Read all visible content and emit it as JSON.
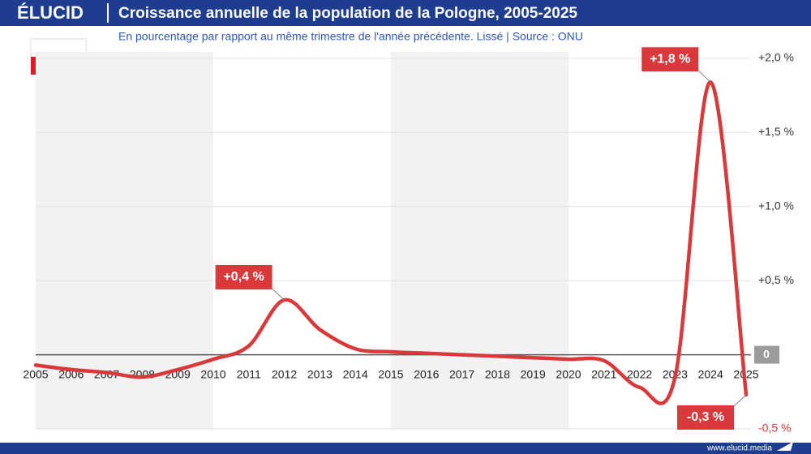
{
  "brand": "ÉLUCID",
  "website": "www.elucid.media",
  "chart_data": {
    "type": "line",
    "title": "Croissance annuelle de la population de la Pologne, 2005-2025",
    "subtitle": "En pourcentage par rapport au même trimestre de l'année précédente. Lissé  |  Source : ONU",
    "x": [
      2005,
      2006,
      2007,
      2008,
      2009,
      2010,
      2011,
      2012,
      2013,
      2014,
      2015,
      2016,
      2017,
      2018,
      2019,
      2020,
      2021,
      2022,
      2023,
      2024,
      2025
    ],
    "series": [
      {
        "name": "Pologne",
        "color": "#d9393b",
        "values": [
          -0.07,
          -0.1,
          -0.12,
          -0.15,
          -0.1,
          -0.03,
          0.06,
          0.37,
          0.17,
          0.04,
          0.02,
          0.01,
          0.0,
          -0.01,
          -0.02,
          -0.03,
          -0.04,
          -0.22,
          -0.15,
          1.84,
          -0.27
        ],
        "value_labels": [
          null,
          null,
          null,
          null,
          null,
          null,
          null,
          "+0,4 %",
          null,
          null,
          null,
          null,
          null,
          null,
          null,
          null,
          null,
          null,
          null,
          "+1,8 %",
          "-0,3 %"
        ]
      }
    ],
    "xlim": [
      2005,
      2025
    ],
    "xticks": [
      2005,
      2006,
      2007,
      2008,
      2009,
      2010,
      2011,
      2012,
      2013,
      2014,
      2015,
      2016,
      2017,
      2018,
      2019,
      2020,
      2021,
      2022,
      2023,
      2024,
      2025
    ],
    "ylim": [
      -0.5,
      2.0
    ],
    "yticks": [
      {
        "value": -0.5,
        "label": "-0,5 %"
      },
      0,
      {
        "value": 0.5,
        "label": "+0,5 %"
      },
      {
        "value": 1.0,
        "label": "+1,0 %"
      },
      {
        "value": 1.5,
        "label": "+1,5 %"
      },
      {
        "value": 2.0,
        "label": "+2,0 %"
      }
    ],
    "grid": true
  }
}
